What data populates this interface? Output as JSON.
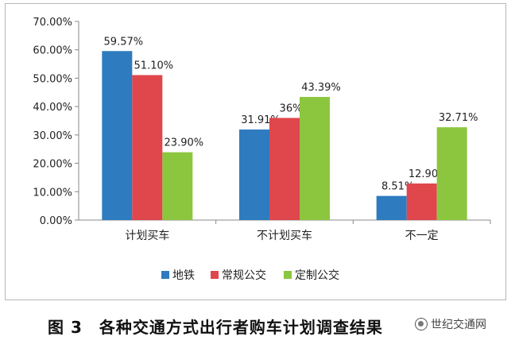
{
  "chart_data": {
    "type": "bar",
    "categories": [
      "计划买车",
      "不计划买车",
      "不一定"
    ],
    "series": [
      {
        "name": "地铁",
        "color": "#2e7bbf",
        "values": [
          59.57,
          31.91,
          8.51
        ],
        "labels": [
          "59.57%",
          "31.91%",
          "8.51%"
        ]
      },
      {
        "name": "常规公交",
        "color": "#e0474c",
        "values": [
          51.1,
          36.0,
          12.9
        ],
        "labels": [
          "51.10%",
          "36%",
          "12.90%"
        ]
      },
      {
        "name": "定制公交",
        "color": "#8cc63f",
        "values": [
          23.9,
          43.39,
          32.71
        ],
        "labels": [
          "23.90%",
          "43.39%",
          "32.71%"
        ]
      }
    ],
    "yticks": [
      "0.00%",
      "10.00%",
      "20.00%",
      "30.00%",
      "40.00%",
      "50.00%",
      "60.00%",
      "70.00%"
    ],
    "ylim": [
      0,
      70
    ],
    "grid": false,
    "legend_position": "bottom"
  },
  "caption": "图 3　各种交通方式出行者购车计划调查结果",
  "watermark": "世纪交通网"
}
